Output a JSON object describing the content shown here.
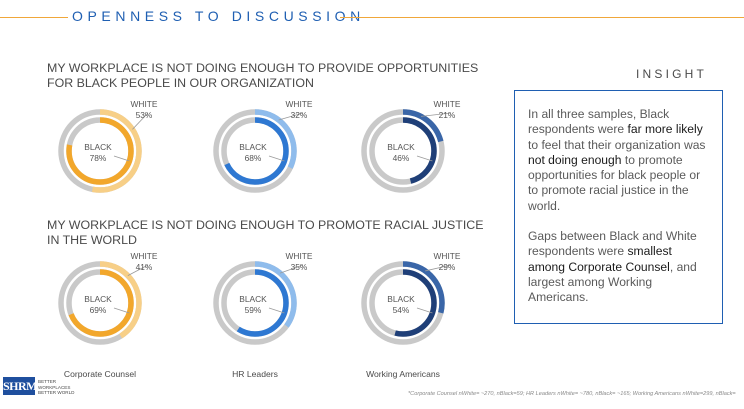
{
  "header": {
    "title": "OPENNESS TO DISCUSSION"
  },
  "questions": [
    {
      "title_line1": "MY WORKPLACE IS NOT DOING ENOUGH TO PROVIDE OPPORTUNITIES",
      "title_line2": "FOR BLACK PEOPLE IN OUR ORGANIZATION"
    },
    {
      "title_line1": "MY WORKPLACE IS NOT DOING ENOUGH TO PROMOTE RACIAL JUSTICE",
      "title_line2": "IN THE WORLD"
    }
  ],
  "insight": {
    "label": "INSIGHT",
    "p1_a": "In all three samples, Black respondents were ",
    "p1_b": "far more likely",
    "p1_c": " to feel that their organization was ",
    "p1_d": "not doing enough",
    "p1_e": " to promote opportunities for black people or to promote racial justice in the world.",
    "p2_a": "Gaps between Black and White respondents were ",
    "p2_b": "smallest among Corporate Counsel",
    "p2_c": ", and largest among Working Americans."
  },
  "chart_data": {
    "type": "donut",
    "groups": [
      "Corporate Counsel",
      "HR Leaders",
      "Working Americans"
    ],
    "group_colors": {
      "Corporate Counsel": "#f2a72b",
      "HR Leaders": "#2e78d2",
      "Working Americans": "#1f3f78"
    },
    "track_color": "#c9c9c9",
    "light_colors": {
      "Corporate Counsel": "#f7cf87",
      "HR Leaders": "#8fbcec",
      "Working Americans": "#3a66a8"
    },
    "rows": [
      {
        "question": "MY WORKPLACE IS NOT DOING ENOUGH TO PROVIDE OPPORTUNITIES FOR BLACK PEOPLE IN OUR ORGANIZATION",
        "series": [
          {
            "group": "Corporate Counsel",
            "white_label": "WHITE",
            "white_text": "53%",
            "white": 53,
            "black_label": "BLACK",
            "black_text": "78%",
            "black": 78
          },
          {
            "group": "HR Leaders",
            "white_label": "WHITE",
            "white_text": "32%",
            "white": 32,
            "black_label": "BLACK",
            "black_text": "68%",
            "black": 68
          },
          {
            "group": "Working Americans",
            "white_label": "WHITE",
            "white_text": "21%",
            "white": 21,
            "black_label": "BLACK",
            "black_text": "46%",
            "black": 46
          }
        ]
      },
      {
        "question": "MY WORKPLACE IS NOT DOING ENOUGH TO PROMOTE RACIAL JUSTICE IN THE WORLD",
        "series": [
          {
            "group": "Corporate Counsel",
            "white_label": "WHITE",
            "white_text": "41%",
            "white": 41,
            "black_label": "BLACK",
            "black_text": "69%",
            "black": 69
          },
          {
            "group": "HR Leaders",
            "white_label": "WHITE",
            "white_text": "35%",
            "white": 35,
            "black_label": "BLACK",
            "black_text": "59%",
            "black": 59
          },
          {
            "group": "Working Americans",
            "white_label": "WHITE",
            "white_text": "29%",
            "white": 29,
            "black_label": "BLACK",
            "black_text": "54%",
            "black": 54
          }
        ]
      }
    ]
  },
  "logo": {
    "text": "SHRM",
    "tagline": "BETTER WORKPLACES BETTER WORLD"
  },
  "footnote": "*Corporate Counsel nWhite= ~270, nBlack=59; HR Leaders nWhite= ~780, nBlack= ~165; Working Americans nWhite=299, nBlack="
}
